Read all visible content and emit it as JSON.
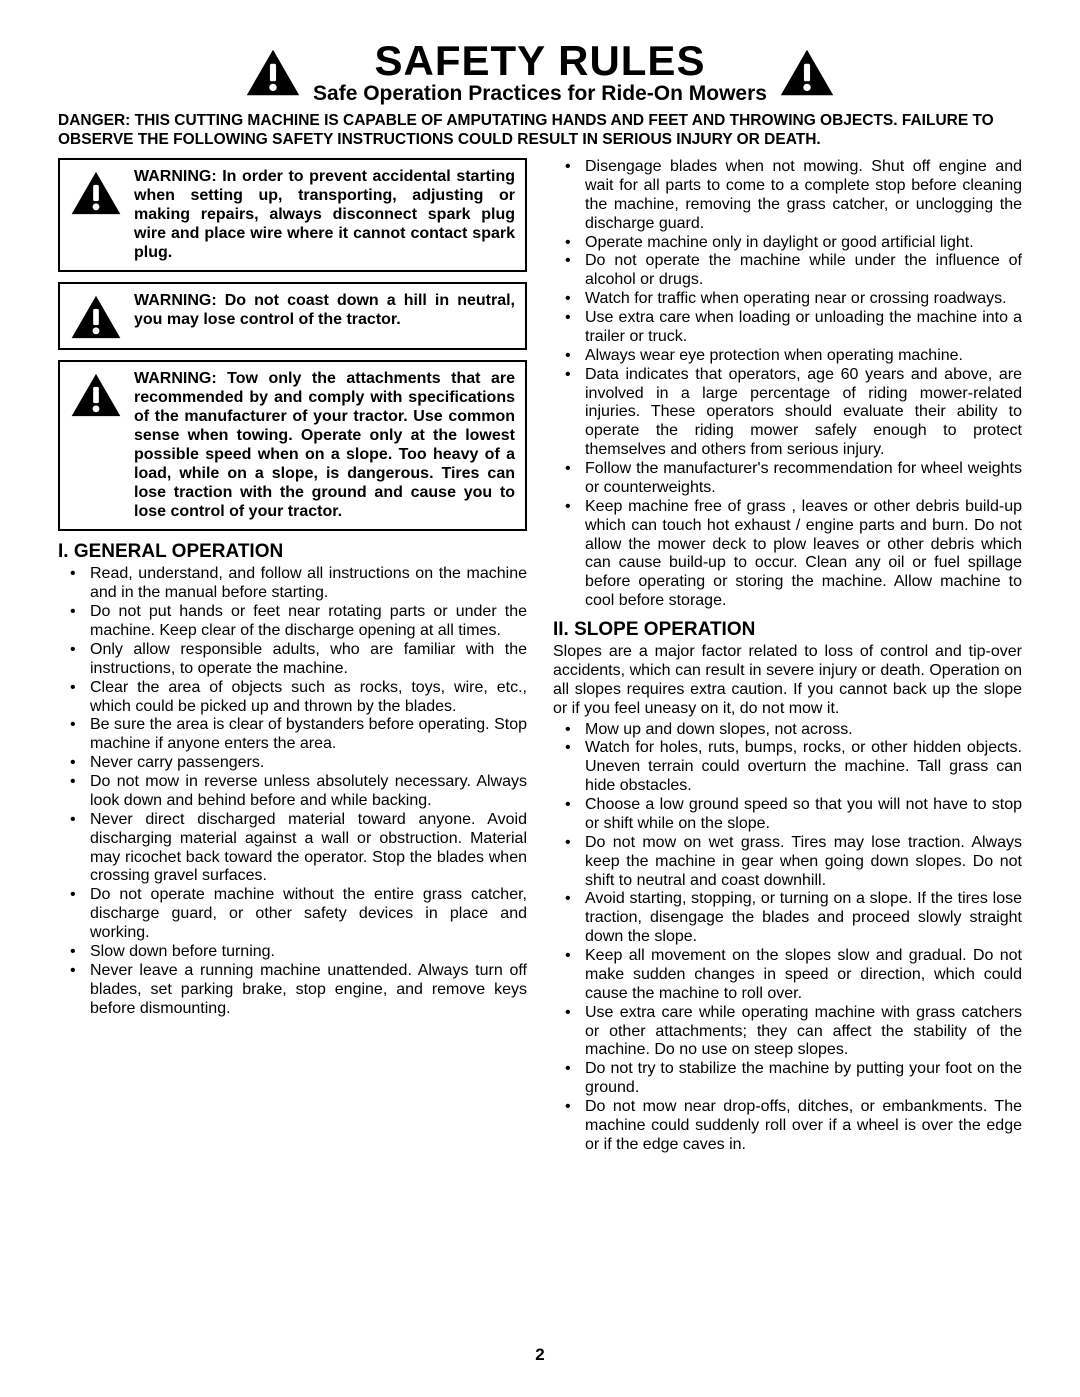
{
  "header": {
    "title": "SAFETY RULES",
    "subtitle": "Safe Operation Practices for Ride-On Mowers",
    "danger": "DANGER:  THIS CUTTING MACHINE IS CAPABLE OF AMPUTATING HANDS AND FEET AND THROWING OBJECTS.  FAILURE TO OBSERVE THE FOLLOWING SAFETY INSTRUCTIONS COULD RESULT IN SERIOUS INJURY OR DEATH."
  },
  "warnings": [
    "WARNING:  In order to prevent accidental starting when setting up, transporting, adjusting or making repairs, always disconnect spark plug wire and place wire where it cannot contact spark plug.",
    "WARNING:  Do not coast down a hill in neutral, you may lose control of the tractor.",
    "WARNING:  Tow only the attachments that are recommended by and comply with specifications of the manufacturer of your tractor. Use common sense when towing. Operate only at the lowest possible speed when on a slope.  Too heavy of a load, while on a slope, is dangerous.  Tires can lose traction with the ground and cause you to lose control of your tractor."
  ],
  "section1": {
    "heading": "I. GENERAL OPERATION",
    "items_left": [
      "Read, understand, and follow all instructions on the machine and in the manual before starting.",
      "Do not put hands or feet near rotating parts or under the machine. Keep clear of the discharge opening at all times.",
      "Only allow responsible adults, who are familiar with the instructions, to operate the machine.",
      "Clear the area of objects such as rocks, toys, wire, etc., which could be picked up and thrown by the blades.",
      "Be sure the area is clear of bystanders before operating.  Stop machine if anyone enters the area.",
      "Never carry passengers.",
      "Do not mow in reverse unless absolutely necessary. Always look down and behind before and while backing.",
      "Never direct discharged material toward anyone. Avoid discharging material against a wall or obstruction. Material may ricochet back toward the operator. Stop the blades when crossing gravel surfaces.",
      "Do not operate machine without the entire grass catcher, discharge guard, or other safety devices in place and working.",
      "Slow down before turning.",
      "Never leave a running machine unattended.  Always turn off blades, set parking brake, stop engine, and remove keys before dismounting."
    ],
    "items_right": [
      "Disengage blades when not mowing. Shut off engine and wait for all parts to come to a complete stop before cleaning the machine, removing the grass catcher, or unclogging the discharge guard.",
      "Operate machine only in daylight or good artificial light.",
      "Do not operate the machine while under the influence of alcohol or drugs.",
      "Watch for traffic when operating near or crossing roadways.",
      "Use extra care when loading or unloading the machine into a trailer or truck.",
      "Always wear eye protection when operating machine.",
      "Data indicates that operators, age 60 years and above, are involved in a large percentage of riding mower-related injuries.  These operators should evaluate their ability to operate the riding mower safely enough to protect themselves and others from serious injury.",
      "Follow the manufacturer's recommendation for wheel weights or counterweights.",
      "Keep machine free of grass , leaves or other debris build-up which can touch hot exhaust / engine parts and burn. Do not allow the mower deck to plow leaves or other debris which can cause build-up to occur. Clean any oil or fuel spillage before operating or storing the machine. Allow machine to cool before storage."
    ]
  },
  "section2": {
    "heading": "II. SLOPE OPERATION",
    "intro": "Slopes are a major factor related to loss of control and tip-over accidents, which can result in severe injury or death.  Operation on all slopes requires extra caution.  If you cannot back up the slope or if you feel uneasy on it, do not mow it.",
    "items": [
      "Mow up and down slopes, not across.",
      "Watch for holes, ruts, bumps, rocks, or other hidden objects.  Uneven terrain could overturn the machine. Tall grass can hide obstacles.",
      "Choose a low ground speed so that you will not have to stop or shift while on the slope.",
      "Do not mow on wet grass. Tires may lose traction.  Always keep the machine in gear when going down slopes. Do not shift to neutral and coast downhill.",
      "Avoid starting, stopping, or turning on a slope.  If the tires lose traction,  disengage the blades and proceed slowly straight down the slope.",
      "Keep all movement on the slopes slow and gradual. Do not make sudden changes in speed or direction, which could cause the machine to roll over.",
      "Use extra care while operating machine with grass catchers or other attachments; they can affect the stability of the machine. Do no use on steep slopes.",
      "Do not  try to stabilize the machine by putting your foot on the ground.",
      "Do not mow near drop-offs, ditches, or embankments. The machine could suddenly roll over if a wheel is over the edge or if the edge caves in."
    ]
  },
  "page_number": "2",
  "style": {
    "page_bg": "#ffffff",
    "text_color": "#000000",
    "border_color": "#000000",
    "title_fontsize": 42,
    "subtitle_fontsize": 21,
    "body_fontsize": 16,
    "heading_fontsize": 19
  }
}
